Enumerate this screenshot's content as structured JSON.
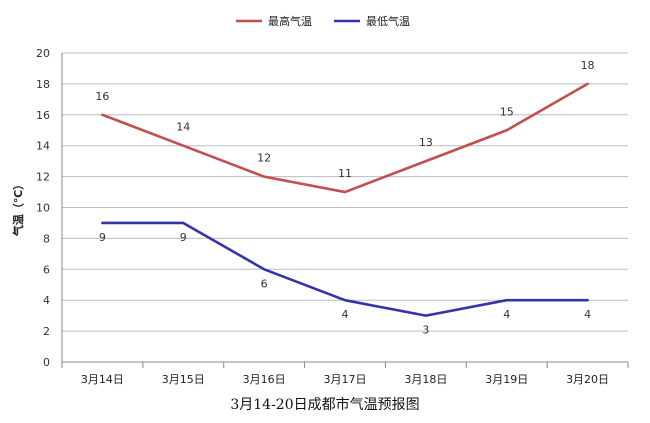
{
  "caption": "3月14-20日成都市气温预报图",
  "chart_data": {
    "type": "line",
    "title": "",
    "xlabel": "",
    "ylabel": "气温（℃）",
    "ylim": [
      0,
      20
    ],
    "yticks": [
      0,
      2,
      4,
      6,
      8,
      10,
      12,
      14,
      16,
      18,
      20
    ],
    "grid": "horizontal",
    "legend_position": "top-center",
    "categories": [
      "3月14日",
      "3月15日",
      "3月16日",
      "3月17日",
      "3月18日",
      "3月19日",
      "3月20日"
    ],
    "series": [
      {
        "name": "最高气温",
        "color": "#c0504d",
        "values": [
          16,
          14,
          12,
          11,
          13,
          15,
          18
        ]
      },
      {
        "name": "最低气温",
        "color": "#3333aa",
        "values": [
          9,
          9,
          6,
          4,
          3,
          4,
          4
        ]
      }
    ]
  }
}
